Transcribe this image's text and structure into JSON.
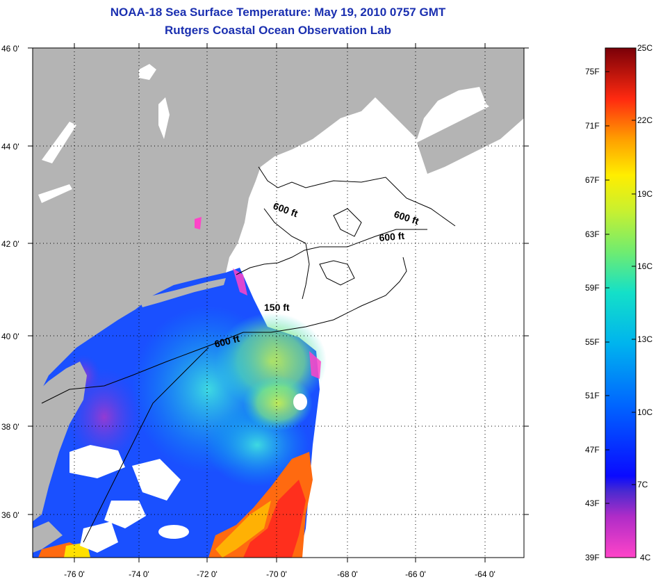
{
  "header": {
    "title": "NOAA-18 Sea Surface Temperature:  May 19, 2010 0757 GMT",
    "subtitle": "Rutgers Coastal Ocean Observation Lab"
  },
  "map": {
    "lat_ticks": [
      "46 0'",
      "44 0'",
      "42 0'",
      "40 0'",
      "38 0'",
      "36 0'"
    ],
    "lon_ticks": [
      "-76 0'",
      "-74 0'",
      "-72 0'",
      "-70 0'",
      "-68 0'",
      "-66 0'",
      "-64 0'"
    ],
    "contours": [
      "600 ft",
      "600 ft",
      "600 ft",
      "150 ft",
      "600 ft"
    ],
    "colors": {
      "land": "#b4b4b4",
      "frame": "#000000",
      "grid": "#000000"
    }
  },
  "colorbar": {
    "f_labels": [
      "75F",
      "71F",
      "67F",
      "63F",
      "59F",
      "55F",
      "51F",
      "47F",
      "43F",
      "39F"
    ],
    "c_labels": [
      "25C",
      "22C",
      "19C",
      "16C",
      "13C",
      "10C",
      "7C",
      "4C"
    ]
  }
}
